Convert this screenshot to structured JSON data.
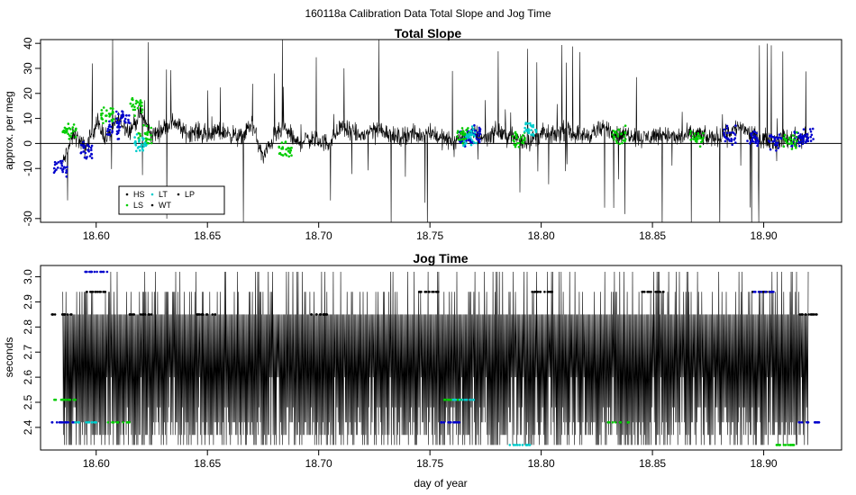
{
  "main_title": "160118a   Calibration Data Total Slope and Jog Time",
  "chart_data": [
    {
      "type": "scatter",
      "title": "Total Slope",
      "xlabel": "",
      "ylabel": "approx. per meg",
      "xlim": [
        18.575,
        18.935
      ],
      "ylim": [
        -31.5,
        41.5
      ],
      "x_ticks": [
        18.6,
        18.65,
        18.7,
        18.75,
        18.8,
        18.85,
        18.9
      ],
      "x_tick_labels": [
        "18.60",
        "18.65",
        "18.70",
        "18.75",
        "18.80",
        "18.85",
        "18.90"
      ],
      "y_ticks": [
        -30,
        -10,
        0,
        10,
        20,
        30,
        40
      ],
      "y_tick_labels": [
        "-30",
        "-10",
        "0",
        "10",
        "20",
        "30",
        "40"
      ],
      "reference_line_y": 0,
      "legend": {
        "position": "bottom-left",
        "entries": [
          {
            "label": "HS",
            "color": "#000000"
          },
          {
            "label": "LS",
            "color": "#00cc00"
          },
          {
            "label": "LT",
            "color": "#00cccc"
          },
          {
            "label": "WT",
            "color": "#000000"
          },
          {
            "label": "LP",
            "color": "#000000"
          }
        ]
      },
      "series": [
        {
          "color": "#000000",
          "x": [
            18.585,
            18.59,
            18.595,
            18.6,
            18.605,
            18.61,
            18.615,
            18.62,
            18.625,
            18.63,
            18.635,
            18.64,
            18.645,
            18.65,
            18.655,
            18.66,
            18.665,
            18.67,
            18.675,
            18.68,
            18.685,
            18.69,
            18.695,
            18.7,
            18.705,
            18.71,
            18.715,
            18.72,
            18.725,
            18.73,
            18.735,
            18.74,
            18.745,
            18.75,
            18.755,
            18.76,
            18.765,
            18.77,
            18.775,
            18.78,
            18.785,
            18.79,
            18.795,
            18.8,
            18.805,
            18.81,
            18.815,
            18.82,
            18.825,
            18.83,
            18.835,
            18.84,
            18.845,
            18.85,
            18.855,
            18.86,
            18.865,
            18.87,
            18.875,
            18.88,
            18.885,
            18.89,
            18.895,
            18.9,
            18.905,
            18.91,
            18.915,
            18.92
          ],
          "y": [
            -8,
            4,
            -2,
            8,
            2,
            10,
            5,
            12,
            3,
            6,
            9,
            4,
            5,
            3,
            5,
            4,
            2,
            8,
            -6,
            3,
            6,
            0,
            2,
            1,
            0,
            7,
            4,
            3,
            6,
            5,
            2,
            4,
            3,
            5,
            2,
            1,
            3,
            4,
            2,
            5,
            3,
            2,
            1,
            4,
            3,
            5,
            4,
            3,
            5,
            6,
            3,
            4,
            2,
            3,
            4,
            2,
            3,
            4,
            2,
            3,
            5,
            7,
            3,
            2,
            1,
            2,
            1,
            3
          ]
        },
        {
          "color": "#0000cc",
          "x": [
            18.584,
            18.596,
            18.608,
            18.612,
            18.766,
            18.77,
            18.885,
            18.895,
            18.905,
            18.915,
            18.92
          ],
          "y": [
            -10,
            -3,
            6,
            10,
            2,
            4,
            3,
            2,
            1,
            2,
            3
          ]
        },
        {
          "color": "#00cc00",
          "x": [
            18.588,
            18.605,
            18.618,
            18.622,
            18.685,
            18.765,
            18.79,
            18.835,
            18.87,
            18.912
          ],
          "y": [
            5,
            12,
            15,
            3,
            -3,
            4,
            2,
            3,
            2,
            1
          ]
        },
        {
          "color": "#00cccc",
          "x": [
            18.62,
            18.768,
            18.795
          ],
          "y": [
            0,
            3,
            6
          ]
        }
      ]
    },
    {
      "type": "scatter",
      "title": "Jog Time",
      "xlabel": "day of year",
      "ylabel": "seconds",
      "xlim": [
        18.575,
        18.935
      ],
      "ylim": [
        2.31,
        3.045
      ],
      "x_ticks": [
        18.6,
        18.65,
        18.7,
        18.75,
        18.8,
        18.85,
        18.9
      ],
      "x_tick_labels": [
        "18.60",
        "18.65",
        "18.70",
        "18.75",
        "18.80",
        "18.85",
        "18.90"
      ],
      "y_ticks": [
        2.4,
        2.5,
        2.6,
        2.7,
        2.8,
        2.9,
        3.0
      ],
      "y_tick_labels": [
        "2.4",
        "2.5",
        "2.6",
        "2.7",
        "2.8",
        "2.9",
        "3.0"
      ],
      "levels": [
        2.33,
        2.37,
        2.42,
        2.48,
        2.51,
        2.6,
        2.85,
        2.94,
        3.02
      ],
      "series": [
        {
          "color": "#000000",
          "x": [
            18.585,
            18.6,
            18.62,
            18.65,
            18.7,
            18.75,
            18.8,
            18.85,
            18.9,
            18.92
          ],
          "y": [
            2.85,
            2.94,
            2.85,
            2.85,
            2.85,
            2.94,
            2.94,
            2.94,
            2.94,
            2.85
          ]
        },
        {
          "color": "#0000cc",
          "x": [
            18.585,
            18.6,
            18.76,
            18.9,
            18.92
          ],
          "y": [
            2.42,
            3.02,
            2.42,
            2.94,
            2.42
          ]
        },
        {
          "color": "#00cc00",
          "x": [
            18.586,
            18.61,
            18.76,
            18.835,
            18.91
          ],
          "y": [
            2.51,
            2.42,
            2.51,
            2.42,
            2.33
          ]
        },
        {
          "color": "#00cccc",
          "x": [
            18.595,
            18.765,
            18.79
          ],
          "y": [
            2.42,
            2.51,
            2.33
          ]
        }
      ]
    }
  ]
}
